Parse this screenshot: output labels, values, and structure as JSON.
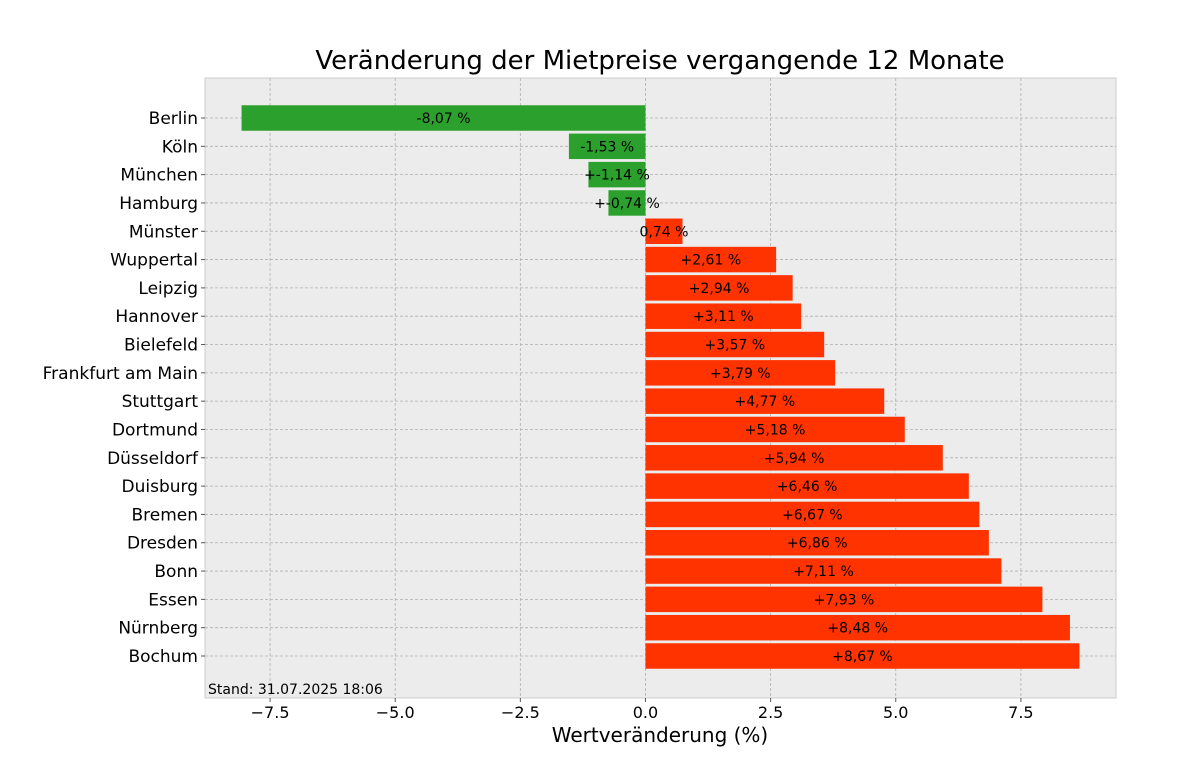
{
  "chart_data": {
    "type": "bar",
    "orientation": "horizontal",
    "title": "Veränderung der Mietpreise vergangende 12 Monate",
    "xlabel": "Wertveränderung (%)",
    "ylabel": "",
    "xlim": [
      -8.8,
      9.4
    ],
    "xticks": [
      -7.5,
      -5.0,
      -2.5,
      0.0,
      2.5,
      5.0,
      7.5
    ],
    "xtick_labels": [
      "−7.5",
      "−5.0",
      "−2.5",
      "0.0",
      "2.5",
      "5.0",
      "7.5"
    ],
    "grid": true,
    "categories": [
      "Berlin",
      "Köln",
      "München",
      "Hamburg",
      "Münster",
      "Wuppertal",
      "Leipzig",
      "Hannover",
      "Bielefeld",
      "Frankfurt am Main",
      "Stuttgart",
      "Dortmund",
      "Düsseldorf",
      "Duisburg",
      "Bremen",
      "Dresden",
      "Bonn",
      "Essen",
      "Nürnberg",
      "Bochum"
    ],
    "values": [
      -8.07,
      -1.53,
      -1.14,
      -0.74,
      0.74,
      2.61,
      2.94,
      3.11,
      3.57,
      3.79,
      4.77,
      5.18,
      5.94,
      6.46,
      6.67,
      6.86,
      7.11,
      7.93,
      8.48,
      8.67
    ],
    "value_labels": [
      "-8,07 %",
      "-1,53 %",
      "+-1,14 %",
      "+-0,74 %",
      "0,74 %",
      "+2,61 %",
      "+2,94 %",
      "+3,11 %",
      "+3,57 %",
      "+3,79 %",
      "+4,77 %",
      "+5,18 %",
      "+5,94 %",
      "+6,46 %",
      "+6,67 %",
      "+6,86 %",
      "+7,11 %",
      "+7,93 %",
      "+8,48 %",
      "+8,67 %"
    ],
    "colors": {
      "negative": "#2ca02c",
      "positive": "#ff3300",
      "plot_background": "#ececec"
    },
    "annotation": "Stand: 31.07.2025 18:06"
  }
}
